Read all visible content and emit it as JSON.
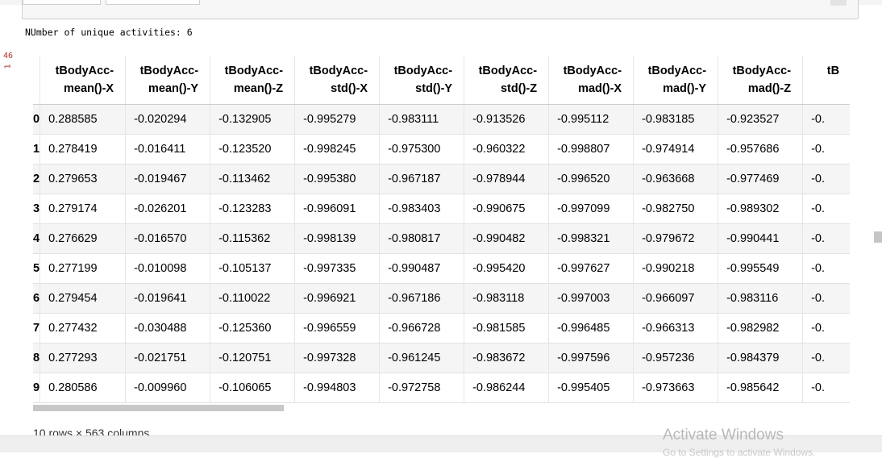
{
  "output": {
    "unique_activities_text": "NUmber of unique activities: 6",
    "cell_prompt_top": "46",
    "cell_prompt_bottom": "1"
  },
  "table": {
    "columns": [
      {
        "line1": "tBodyAcc-",
        "line2": "mean()-X"
      },
      {
        "line1": "tBodyAcc-",
        "line2": "mean()-Y"
      },
      {
        "line1": "tBodyAcc-",
        "line2": "mean()-Z"
      },
      {
        "line1": "tBodyAcc-",
        "line2": "std()-X"
      },
      {
        "line1": "tBodyAcc-",
        "line2": "std()-Y"
      },
      {
        "line1": "tBodyAcc-",
        "line2": "std()-Z"
      },
      {
        "line1": "tBodyAcc-",
        "line2": "mad()-X"
      },
      {
        "line1": "tBodyAcc-",
        "line2": "mad()-Y"
      },
      {
        "line1": "tBodyAcc-",
        "line2": "mad()-Z"
      },
      {
        "line1": "tB",
        "line2": ""
      }
    ],
    "rows": [
      {
        "index": "0",
        "values": [
          "0.288585",
          "-0.020294",
          "-0.132905",
          "-0.995279",
          "-0.983111",
          "-0.913526",
          "-0.995112",
          "-0.983185",
          "-0.923527",
          "-0."
        ]
      },
      {
        "index": "1",
        "values": [
          "0.278419",
          "-0.016411",
          "-0.123520",
          "-0.998245",
          "-0.975300",
          "-0.960322",
          "-0.998807",
          "-0.974914",
          "-0.957686",
          "-0."
        ]
      },
      {
        "index": "2",
        "values": [
          "0.279653",
          "-0.019467",
          "-0.113462",
          "-0.995380",
          "-0.967187",
          "-0.978944",
          "-0.996520",
          "-0.963668",
          "-0.977469",
          "-0."
        ]
      },
      {
        "index": "3",
        "values": [
          "0.279174",
          "-0.026201",
          "-0.123283",
          "-0.996091",
          "-0.983403",
          "-0.990675",
          "-0.997099",
          "-0.982750",
          "-0.989302",
          "-0."
        ]
      },
      {
        "index": "4",
        "values": [
          "0.276629",
          "-0.016570",
          "-0.115362",
          "-0.998139",
          "-0.980817",
          "-0.990482",
          "-0.998321",
          "-0.979672",
          "-0.990441",
          "-0."
        ]
      },
      {
        "index": "5",
        "values": [
          "0.277199",
          "-0.010098",
          "-0.105137",
          "-0.997335",
          "-0.990487",
          "-0.995420",
          "-0.997627",
          "-0.990218",
          "-0.995549",
          "-0."
        ]
      },
      {
        "index": "6",
        "values": [
          "0.279454",
          "-0.019641",
          "-0.110022",
          "-0.996921",
          "-0.967186",
          "-0.983118",
          "-0.997003",
          "-0.966097",
          "-0.983116",
          "-0."
        ]
      },
      {
        "index": "7",
        "values": [
          "0.277432",
          "-0.030488",
          "-0.125360",
          "-0.996559",
          "-0.966728",
          "-0.981585",
          "-0.996485",
          "-0.966313",
          "-0.982982",
          "-0."
        ]
      },
      {
        "index": "8",
        "values": [
          "0.277293",
          "-0.021751",
          "-0.120751",
          "-0.997328",
          "-0.961245",
          "-0.983672",
          "-0.997596",
          "-0.957236",
          "-0.984379",
          "-0."
        ]
      },
      {
        "index": "9",
        "values": [
          "0.280586",
          "-0.009960",
          "-0.106065",
          "-0.994803",
          "-0.972758",
          "-0.986244",
          "-0.995405",
          "-0.973663",
          "-0.985642",
          "-0."
        ]
      }
    ],
    "shape_text": "10 rows × 563 columns"
  },
  "watermark": {
    "title": "Activate Windows",
    "subtitle": "Go to Settings to activate Windows."
  },
  "colors": {
    "prompt": "#b03030",
    "stripe": "#f5f5f5",
    "watermark": "#b9b9b9"
  }
}
